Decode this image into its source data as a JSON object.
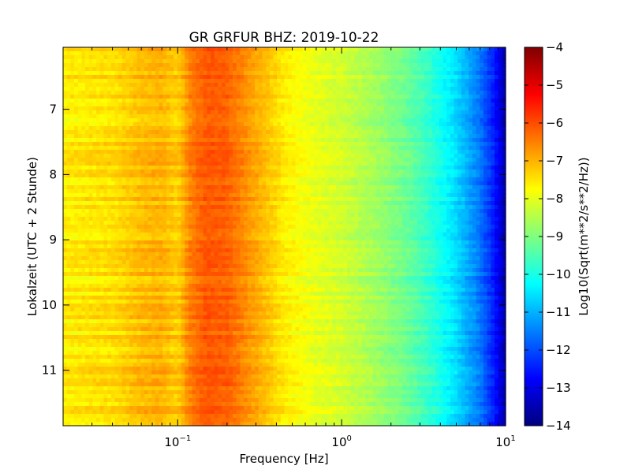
{
  "chart_data": {
    "type": "heatmap",
    "title": "GR GRFUR BHZ: 2019-10-22",
    "xlabel": "Frequency [Hz]",
    "ylabel": "Lokalzeit (UTC + 2 Stunde)",
    "colorbar_label": "Log10(Sqrt(m**2/s**2/Hz))",
    "x_scale": "log",
    "xlim": [
      0.02,
      10
    ],
    "ylim": [
      6.05,
      11.85
    ],
    "y_inverted": true,
    "x_ticks": [
      {
        "value": 0.1,
        "base": "10",
        "exp": "−1"
      },
      {
        "value": 1,
        "base": "10",
        "exp": "0"
      },
      {
        "value": 10,
        "base": "10",
        "exp": "1"
      }
    ],
    "y_ticks": [
      {
        "value": 7,
        "label": "7"
      },
      {
        "value": 8,
        "label": "8"
      },
      {
        "value": 9,
        "label": "9"
      },
      {
        "value": 10,
        "label": "10"
      },
      {
        "value": 11,
        "label": "11"
      }
    ],
    "colorbar_range": [
      -14,
      -4
    ],
    "colorbar_ticks": [
      {
        "value": -4,
        "label": "−4"
      },
      {
        "value": -5,
        "label": "−5"
      },
      {
        "value": -6,
        "label": "−6"
      },
      {
        "value": -7,
        "label": "−7"
      },
      {
        "value": -8,
        "label": "−8"
      },
      {
        "value": -9,
        "label": "−9"
      },
      {
        "value": -10,
        "label": "−10"
      },
      {
        "value": -11,
        "label": "−11"
      },
      {
        "value": -12,
        "label": "−12"
      },
      {
        "value": -13,
        "label": "−13"
      },
      {
        "value": -14,
        "label": "−14"
      }
    ],
    "colormap": "jet",
    "spectrum_profile": {
      "frequency_hz": [
        0.02,
        0.04,
        0.06,
        0.08,
        0.1,
        0.12,
        0.15,
        0.2,
        0.3,
        0.45,
        0.7,
        1.0,
        1.5,
        2.5,
        3.5,
        5,
        7,
        8.5,
        10
      ],
      "log10_psd": [
        -7.6,
        -7.45,
        -7.1,
        -7.0,
        -7.3,
        -6.5,
        -6.1,
        -6.2,
        -6.9,
        -7.6,
        -8.0,
        -8.2,
        -8.6,
        -9.2,
        -9.8,
        -10.6,
        -11.6,
        -12.5,
        -13.6
      ]
    }
  }
}
